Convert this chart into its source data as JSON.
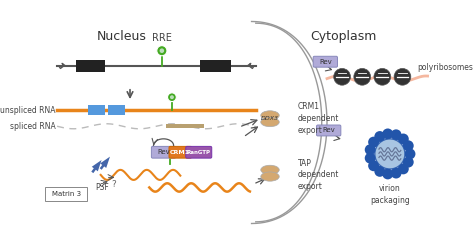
{
  "bg_color": "#ffffff",
  "nucleus_label": "Nucleus",
  "cytoplasm_label": "Cytoplasm",
  "rre_label": "RRE",
  "unspliced_rna_label": "unspliced RNA",
  "spliced_rna_label": "spliced RNA",
  "crm1_export_label": "CRM1\ndependent\nexport",
  "tap_export_label": "TAP\ndependent\nexport",
  "ddx3_label": "DDX3",
  "rev_label": "Rev",
  "crm1_protein_label": "CRM1",
  "rangtp_label": "RanGTP",
  "matrin_label": "Matrin 3",
  "psf_label": "PSF",
  "polyribosomes_label": "polyribosomes",
  "virion_label": "virion\npackaging",
  "dna_line_color": "#555555",
  "rna_orange_color": "#E8841A",
  "rna_spliced_color": "#bbbbbb",
  "exon_blue_color": "#5599dd",
  "exon_black_color": "#222222",
  "rre_green_color": "#44aa22",
  "rev_color": "#b0aad8",
  "crm1_color": "#e07820",
  "rangtp_color": "#9955aa",
  "pore_tan_color": "#d4a870",
  "arrow_color": "#555555",
  "polyrib_salmon_color": "#f5b8a0",
  "virion_blue_color": "#2255aa",
  "virion_light_color": "#99bbdd",
  "nuclear_curve_color": "#999999"
}
